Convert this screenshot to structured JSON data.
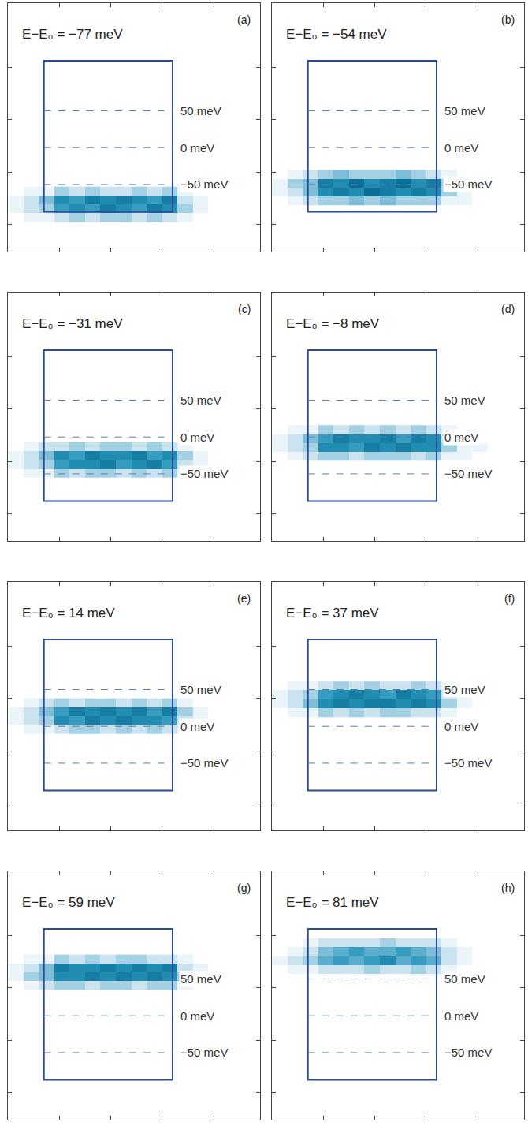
{
  "chart_data": [
    {
      "type": "heatmap",
      "title": "E−E₀ = −77 meV",
      "panel_label": "(a)",
      "xlim": [
        0,
        4.9
      ],
      "ylim": [
        -141,
        196
      ],
      "xticks": [
        1,
        2,
        3,
        4
      ],
      "yticks": [
        -104,
        -33,
        38,
        109
      ],
      "tick_labels": false,
      "box": {
        "x": [
          0.7,
          3.2
        ],
        "y": [
          -87,
          118
        ]
      },
      "reference_lines": [
        {
          "value": 50,
          "label": "50 meV"
        },
        {
          "value": 0,
          "label": "0 meV"
        },
        {
          "value": -50,
          "label": "−50 meV"
        }
      ],
      "zlim": [
        0,
        9
      ],
      "x": [
        0.15,
        0.45,
        0.75,
        1.05,
        1.35,
        1.65,
        1.95,
        2.25,
        2.55,
        2.85,
        3.15,
        3.45,
        3.75,
        4.05,
        4.35,
        4.65
      ],
      "y": [
        -95,
        -83,
        -71,
        -59
      ],
      "z": [
        [
          0,
          1,
          1,
          2,
          3,
          2,
          3,
          3,
          2,
          3,
          2,
          1,
          0,
          0,
          0,
          0
        ],
        [
          1,
          2,
          3,
          6,
          7,
          6,
          8,
          7,
          6,
          8,
          7,
          3,
          1,
          0,
          0,
          0
        ],
        [
          1,
          2,
          4,
          7,
          6,
          8,
          7,
          8,
          7,
          6,
          8,
          2,
          1,
          0,
          0,
          0
        ],
        [
          0,
          1,
          1,
          3,
          2,
          3,
          2,
          2,
          3,
          2,
          3,
          1,
          0,
          0,
          0,
          0
        ]
      ]
    },
    {
      "type": "heatmap",
      "title": "E−E₀ = −54 meV",
      "panel_label": "(b)",
      "xlim": [
        0,
        4.9
      ],
      "ylim": [
        -141,
        196
      ],
      "xticks": [
        1,
        2,
        3,
        4
      ],
      "yticks": [
        -104,
        -33,
        38,
        109
      ],
      "tick_labels": false,
      "box": {
        "x": [
          0.7,
          3.2
        ],
        "y": [
          -87,
          118
        ]
      },
      "reference_lines": [
        {
          "value": 50,
          "label": "50 meV"
        },
        {
          "value": 0,
          "label": "0 meV"
        },
        {
          "value": -50,
          "label": "−50 meV"
        }
      ],
      "zlim": [
        0,
        9
      ],
      "x": [
        0.15,
        0.45,
        0.75,
        1.05,
        1.35,
        1.65,
        1.95,
        2.25,
        2.55,
        2.85,
        3.15,
        3.45,
        3.75,
        4.05,
        4.35,
        4.65
      ],
      "y": [
        -72,
        -60,
        -48,
        -36
      ],
      "z": [
        [
          0,
          1,
          2,
          3,
          3,
          4,
          3,
          4,
          3,
          3,
          3,
          1,
          1,
          0,
          0,
          0
        ],
        [
          1,
          2,
          4,
          7,
          8,
          7,
          9,
          8,
          7,
          8,
          7,
          3,
          1,
          0,
          0,
          0
        ],
        [
          1,
          3,
          4,
          8,
          7,
          9,
          7,
          8,
          9,
          7,
          8,
          3,
          1,
          0,
          0,
          0
        ],
        [
          0,
          1,
          2,
          3,
          4,
          3,
          3,
          3,
          4,
          3,
          2,
          1,
          0,
          0,
          0,
          0
        ]
      ]
    },
    {
      "type": "heatmap",
      "title": "E−E₀ = −31 meV",
      "panel_label": "(c)",
      "xlim": [
        0,
        4.9
      ],
      "ylim": [
        -141,
        196
      ],
      "xticks": [
        1,
        2,
        3,
        4
      ],
      "yticks": [
        -104,
        -33,
        38,
        109
      ],
      "tick_labels": false,
      "box": {
        "x": [
          0.7,
          3.2
        ],
        "y": [
          -87,
          118
        ]
      },
      "reference_lines": [
        {
          "value": 50,
          "label": "50 meV"
        },
        {
          "value": 0,
          "label": "0 meV"
        },
        {
          "value": -50,
          "label": "−50 meV"
        }
      ],
      "zlim": [
        0,
        9
      ],
      "x": [
        0.15,
        0.45,
        0.75,
        1.05,
        1.35,
        1.65,
        1.95,
        2.25,
        2.55,
        2.85,
        3.15,
        3.45,
        3.75,
        4.05,
        4.35,
        4.65
      ],
      "y": [
        -49,
        -37,
        -25,
        -13
      ],
      "z": [
        [
          0,
          1,
          1,
          3,
          2,
          3,
          3,
          2,
          3,
          2,
          3,
          1,
          0,
          0,
          0,
          0
        ],
        [
          1,
          2,
          3,
          6,
          7,
          7,
          8,
          6,
          7,
          8,
          6,
          2,
          1,
          0,
          0,
          0
        ],
        [
          1,
          2,
          4,
          7,
          6,
          8,
          7,
          7,
          8,
          6,
          7,
          3,
          1,
          0,
          0,
          0
        ],
        [
          0,
          1,
          2,
          2,
          3,
          2,
          3,
          3,
          2,
          3,
          2,
          1,
          0,
          0,
          0,
          0
        ]
      ]
    },
    {
      "type": "heatmap",
      "title": "E−E₀ = −8 meV",
      "panel_label": "(d)",
      "xlim": [
        0,
        4.9
      ],
      "ylim": [
        -141,
        196
      ],
      "xticks": [
        1,
        2,
        3,
        4
      ],
      "yticks": [
        -104,
        -33,
        38,
        109
      ],
      "tick_labels": false,
      "box": {
        "x": [
          0.7,
          3.2
        ],
        "y": [
          -87,
          118
        ]
      },
      "reference_lines": [
        {
          "value": 50,
          "label": "50 meV"
        },
        {
          "value": 0,
          "label": "0 meV"
        },
        {
          "value": -50,
          "label": "−50 meV"
        }
      ],
      "zlim": [
        0,
        9
      ],
      "x": [
        0.15,
        0.45,
        0.75,
        1.05,
        1.35,
        1.65,
        1.95,
        2.25,
        2.55,
        2.85,
        3.15,
        3.45,
        3.75,
        4.05,
        4.35,
        4.65
      ],
      "y": [
        -26,
        -14,
        -2,
        10
      ],
      "z": [
        [
          0,
          1,
          2,
          3,
          3,
          2,
          3,
          3,
          3,
          2,
          3,
          1,
          1,
          0,
          0,
          0
        ],
        [
          1,
          2,
          3,
          7,
          7,
          6,
          8,
          7,
          8,
          7,
          7,
          3,
          1,
          1,
          0,
          0
        ],
        [
          1,
          2,
          4,
          6,
          8,
          7,
          7,
          8,
          6,
          8,
          7,
          2,
          1,
          0,
          0,
          0
        ],
        [
          0,
          1,
          1,
          3,
          2,
          3,
          2,
          3,
          2,
          3,
          2,
          1,
          0,
          0,
          0,
          0
        ]
      ]
    },
    {
      "type": "heatmap",
      "title": "E−E₀ = 14 meV",
      "panel_label": "(e)",
      "xlim": [
        0,
        4.9
      ],
      "ylim": [
        -141,
        196
      ],
      "xticks": [
        1,
        2,
        3,
        4
      ],
      "yticks": [
        -104,
        -33,
        38,
        109
      ],
      "tick_labels": false,
      "box": {
        "x": [
          0.7,
          3.2
        ],
        "y": [
          -87,
          118
        ]
      },
      "reference_lines": [
        {
          "value": 50,
          "label": "50 meV"
        },
        {
          "value": 0,
          "label": "0 meV"
        },
        {
          "value": -50,
          "label": "−50 meV"
        }
      ],
      "zlim": [
        0,
        9
      ],
      "x": [
        0.15,
        0.45,
        0.75,
        1.05,
        1.35,
        1.65,
        1.95,
        2.25,
        2.55,
        2.85,
        3.15,
        3.45,
        3.75,
        4.05,
        4.35,
        4.65
      ],
      "y": [
        -4,
        8,
        20,
        32
      ],
      "z": [
        [
          0,
          1,
          1,
          2,
          3,
          3,
          2,
          3,
          2,
          3,
          2,
          1,
          0,
          0,
          0,
          0
        ],
        [
          1,
          2,
          3,
          7,
          6,
          8,
          7,
          8,
          7,
          7,
          6,
          2,
          1,
          0,
          0,
          0
        ],
        [
          1,
          2,
          4,
          6,
          8,
          7,
          8,
          7,
          8,
          6,
          8,
          3,
          1,
          0,
          0,
          0
        ],
        [
          0,
          1,
          2,
          3,
          2,
          3,
          3,
          2,
          3,
          2,
          3,
          1,
          0,
          0,
          0,
          0
        ]
      ]
    },
    {
      "type": "heatmap",
      "title": "E−E₀ = 37 meV",
      "panel_label": "(f)",
      "xlim": [
        0,
        4.9
      ],
      "ylim": [
        -141,
        196
      ],
      "xticks": [
        1,
        2,
        3,
        4
      ],
      "yticks": [
        -104,
        -33,
        38,
        109
      ],
      "tick_labels": false,
      "box": {
        "x": [
          0.7,
          3.2
        ],
        "y": [
          -87,
          118
        ]
      },
      "reference_lines": [
        {
          "value": 50,
          "label": "50 meV"
        },
        {
          "value": 0,
          "label": "0 meV"
        },
        {
          "value": -50,
          "label": "−50 meV"
        }
      ],
      "zlim": [
        0,
        9
      ],
      "x": [
        0.15,
        0.45,
        0.75,
        1.05,
        1.35,
        1.65,
        1.95,
        2.25,
        2.55,
        2.85,
        3.15,
        3.45,
        3.75,
        4.05,
        4.35,
        4.65
      ],
      "y": [
        19,
        31,
        43,
        55
      ],
      "z": [
        [
          0,
          1,
          1,
          3,
          2,
          3,
          2,
          3,
          3,
          2,
          2,
          1,
          0,
          0,
          0,
          0
        ],
        [
          1,
          2,
          4,
          7,
          8,
          7,
          8,
          8,
          7,
          8,
          7,
          3,
          1,
          0,
          0,
          0
        ],
        [
          1,
          2,
          3,
          6,
          7,
          8,
          7,
          6,
          8,
          7,
          6,
          2,
          1,
          0,
          0,
          0
        ],
        [
          0,
          1,
          1,
          2,
          3,
          2,
          3,
          2,
          2,
          3,
          2,
          1,
          0,
          0,
          0,
          0
        ]
      ]
    },
    {
      "type": "heatmap",
      "title": "E−E₀ = 59 meV",
      "panel_label": "(g)",
      "xlim": [
        0,
        4.9
      ],
      "ylim": [
        -141,
        196
      ],
      "xticks": [
        1,
        2,
        3,
        4
      ],
      "yticks": [
        -104,
        -33,
        38,
        109
      ],
      "tick_labels": false,
      "box": {
        "x": [
          0.7,
          3.2
        ],
        "y": [
          -87,
          118
        ]
      },
      "reference_lines": [
        {
          "value": 50,
          "label": "50 meV"
        },
        {
          "value": 0,
          "label": "0 meV"
        },
        {
          "value": -50,
          "label": "−50 meV"
        }
      ],
      "zlim": [
        0,
        9
      ],
      "x": [
        0.15,
        0.45,
        0.75,
        1.05,
        1.35,
        1.65,
        1.95,
        2.25,
        2.55,
        2.85,
        3.15,
        3.45,
        3.75,
        4.05,
        4.35,
        4.65
      ],
      "y": [
        41,
        53,
        65,
        77
      ],
      "z": [
        [
          0,
          1,
          2,
          3,
          3,
          2,
          3,
          3,
          2,
          3,
          3,
          1,
          0,
          0,
          0,
          0
        ],
        [
          1,
          3,
          4,
          7,
          7,
          8,
          7,
          8,
          7,
          8,
          7,
          3,
          1,
          0,
          0,
          0
        ],
        [
          1,
          2,
          4,
          8,
          7,
          7,
          8,
          7,
          8,
          7,
          8,
          2,
          1,
          0,
          0,
          0
        ],
        [
          0,
          1,
          1,
          3,
          2,
          3,
          2,
          3,
          3,
          2,
          2,
          1,
          0,
          0,
          0,
          0
        ]
      ]
    },
    {
      "type": "heatmap",
      "title": "E−E₀ = 81 meV",
      "panel_label": "(h)",
      "xlim": [
        0,
        4.9
      ],
      "ylim": [
        -141,
        196
      ],
      "xticks": [
        1,
        2,
        3,
        4
      ],
      "yticks": [
        -104,
        -33,
        38,
        109
      ],
      "tick_labels": false,
      "box": {
        "x": [
          0.7,
          3.2
        ],
        "y": [
          -87,
          118
        ]
      },
      "reference_lines": [
        {
          "value": 50,
          "label": "50 meV"
        },
        {
          "value": 0,
          "label": "0 meV"
        },
        {
          "value": -50,
          "label": "−50 meV"
        }
      ],
      "zlim": [
        0,
        9
      ],
      "x": [
        0.15,
        0.45,
        0.75,
        1.05,
        1.35,
        1.65,
        1.95,
        2.25,
        2.55,
        2.85,
        3.15,
        3.45,
        3.75,
        4.05,
        4.35,
        4.65
      ],
      "y": [
        63,
        75,
        87,
        99
      ],
      "z": [
        [
          0,
          1,
          1,
          2,
          2,
          2,
          3,
          2,
          2,
          3,
          2,
          1,
          0,
          0,
          0,
          0
        ],
        [
          1,
          2,
          3,
          5,
          6,
          5,
          6,
          7,
          5,
          6,
          5,
          2,
          1,
          0,
          0,
          0
        ],
        [
          0,
          1,
          2,
          4,
          5,
          6,
          5,
          5,
          6,
          5,
          4,
          2,
          1,
          0,
          0,
          0
        ],
        [
          0,
          0,
          1,
          2,
          2,
          2,
          2,
          3,
          2,
          2,
          2,
          1,
          0,
          0,
          0,
          0
        ]
      ]
    }
  ]
}
